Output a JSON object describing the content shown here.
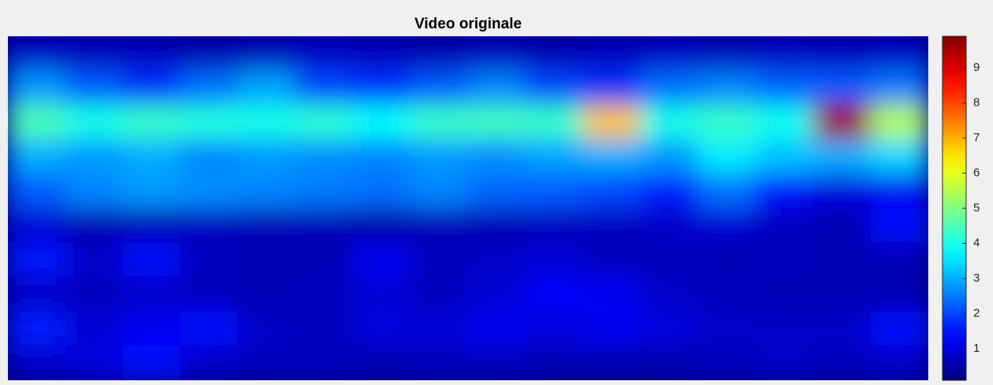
{
  "chart_data": {
    "type": "heatmap",
    "title": "Video originale",
    "colormap": "jet",
    "clim": [
      0.1,
      9.9
    ],
    "colorbar_ticks": [
      1,
      2,
      3,
      4,
      5,
      6,
      7,
      8,
      9
    ],
    "z": [
      [
        0.8,
        0.7,
        0.7,
        0.6,
        0.7,
        0.8,
        0.7,
        0.6,
        0.7,
        0.6,
        0.7,
        0.8,
        0.7,
        0.8,
        0.7,
        0.8
      ],
      [
        2.8,
        2.2,
        1.8,
        2.4,
        2.9,
        2.0,
        1.8,
        2.2,
        2.6,
        2.0,
        1.8,
        2.4,
        2.6,
        2.3,
        2.2,
        2.5
      ],
      [
        4.5,
        4.0,
        4.3,
        4.1,
        4.0,
        4.2,
        3.8,
        4.3,
        4.4,
        4.3,
        6.8,
        4.0,
        4.3,
        3.9,
        9.6,
        5.5
      ],
      [
        3.0,
        2.8,
        3.0,
        2.6,
        2.8,
        2.7,
        2.6,
        2.8,
        2.7,
        2.9,
        3.0,
        2.8,
        3.6,
        3.2,
        3.0,
        3.4
      ],
      [
        2.2,
        2.6,
        2.8,
        2.7,
        2.6,
        2.5,
        2.4,
        2.6,
        2.3,
        2.2,
        2.0,
        1.6,
        2.4,
        1.4,
        1.0,
        1.2
      ],
      [
        0.9,
        0.6,
        0.6,
        0.7,
        0.6,
        0.6,
        0.5,
        0.6,
        0.6,
        0.7,
        0.7,
        0.8,
        0.9,
        0.7,
        0.6,
        1.4
      ],
      [
        1.5,
        0.8,
        1.4,
        0.7,
        0.6,
        0.6,
        1.2,
        0.7,
        0.8,
        0.9,
        0.7,
        0.7,
        0.6,
        0.7,
        0.6,
        0.6
      ],
      [
        0.8,
        0.7,
        0.8,
        0.7,
        0.6,
        0.7,
        0.9,
        0.7,
        0.9,
        1.3,
        1.2,
        0.8,
        0.7,
        0.6,
        0.6,
        0.6
      ],
      [
        1.6,
        0.9,
        1.2,
        1.4,
        0.8,
        0.7,
        1.0,
        0.9,
        1.2,
        1.0,
        1.2,
        1.0,
        0.8,
        0.8,
        0.8,
        1.4
      ],
      [
        0.8,
        1.0,
        1.4,
        0.8,
        0.7,
        0.7,
        0.6,
        0.7,
        0.7,
        0.6,
        0.6,
        0.6,
        0.7,
        0.8,
        0.7,
        0.8
      ]
    ]
  }
}
